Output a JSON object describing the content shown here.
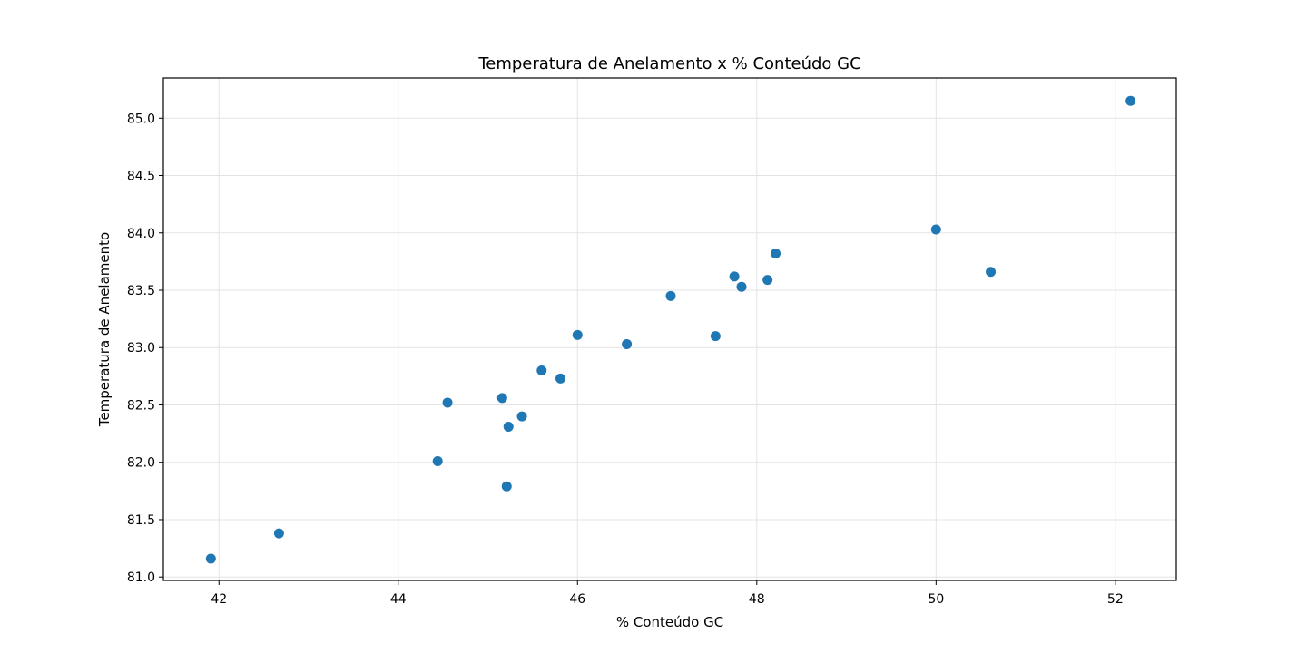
{
  "chart_data": {
    "type": "scatter",
    "title": "Temperatura de Anelamento x % Conteúdo GC",
    "xlabel": "% Conteúdo GC",
    "ylabel": "Temperatura de Anelamento",
    "xlim": [
      41.38,
      52.68
    ],
    "ylim": [
      80.97,
      85.35
    ],
    "xticks": [
      42,
      44,
      46,
      48,
      50,
      52
    ],
    "xtick_labels": [
      "42",
      "44",
      "46",
      "48",
      "50",
      "52"
    ],
    "yticks": [
      81.0,
      81.5,
      82.0,
      82.5,
      83.0,
      83.5,
      84.0,
      84.5,
      85.0
    ],
    "ytick_labels": [
      "81.0",
      "81.5",
      "82.0",
      "82.5",
      "83.0",
      "83.5",
      "84.0",
      "84.5",
      "85.0"
    ],
    "grid": true,
    "legend": false,
    "color": "#1f77b4",
    "points": [
      {
        "x": 41.91,
        "y": 81.16
      },
      {
        "x": 42.67,
        "y": 81.38
      },
      {
        "x": 44.44,
        "y": 82.01
      },
      {
        "x": 44.55,
        "y": 82.52
      },
      {
        "x": 45.16,
        "y": 82.56
      },
      {
        "x": 45.21,
        "y": 81.79
      },
      {
        "x": 45.23,
        "y": 82.31
      },
      {
        "x": 45.38,
        "y": 82.4
      },
      {
        "x": 45.6,
        "y": 82.8
      },
      {
        "x": 45.81,
        "y": 82.73
      },
      {
        "x": 46.0,
        "y": 83.11
      },
      {
        "x": 46.55,
        "y": 83.03
      },
      {
        "x": 47.04,
        "y": 83.45
      },
      {
        "x": 47.54,
        "y": 83.1
      },
      {
        "x": 47.75,
        "y": 83.62
      },
      {
        "x": 47.83,
        "y": 83.53
      },
      {
        "x": 48.12,
        "y": 83.59
      },
      {
        "x": 48.21,
        "y": 83.82
      },
      {
        "x": 50.0,
        "y": 84.03
      },
      {
        "x": 50.61,
        "y": 83.66
      },
      {
        "x": 52.17,
        "y": 85.15
      }
    ]
  }
}
